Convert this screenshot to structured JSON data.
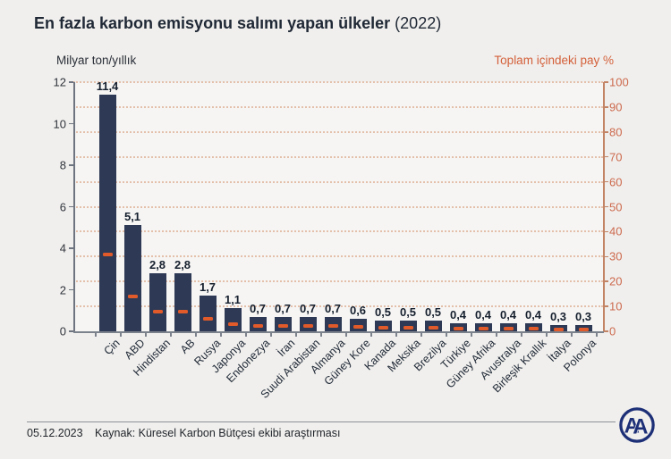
{
  "header": {
    "title": "En fazla karbon emisyonu salımı yapan ülkeler",
    "year": "(2022)"
  },
  "axes": {
    "left_title": "Milyar ton/yıllık",
    "right_title": "Toplam içindeki pay %"
  },
  "chart_data": {
    "type": "bar",
    "title": "En fazla karbon emisyonu salımı yapan ülkeler (2022)",
    "categories": [
      "Çin",
      "ABD",
      "Hindistan",
      "AB",
      "Rusya",
      "Japonya",
      "Endonezya",
      "İran",
      "Suudi Arabistan",
      "Almanya",
      "Güney Kore",
      "Kanada",
      "Meksika",
      "Brezilya",
      "Türkiye",
      "Güney Afrika",
      "Avustralya",
      "Birleşik Krallık",
      "İtalya",
      "Polonya"
    ],
    "series": [
      {
        "name": "Milyar ton/yıllık",
        "axis": "left",
        "style": "bar",
        "values": [
          11.4,
          5.1,
          2.8,
          2.8,
          1.7,
          1.1,
          0.7,
          0.7,
          0.7,
          0.7,
          0.6,
          0.5,
          0.5,
          0.5,
          0.4,
          0.4,
          0.4,
          0.4,
          0.3,
          0.3
        ],
        "labels": [
          "11,4",
          "5,1",
          "2,8",
          "2,8",
          "1,7",
          "1,1",
          "0,7",
          "0,7",
          "0,7",
          "0,7",
          "0,6",
          "0,5",
          "0,5",
          "0,5",
          "0,4",
          "0,4",
          "0,4",
          "0,4",
          "0,3",
          "0,3"
        ]
      },
      {
        "name": "Toplam içindeki pay %",
        "axis": "right",
        "style": "dash-marker",
        "values": [
          31,
          14,
          8,
          8,
          5,
          3,
          2,
          2,
          2,
          2,
          1.7,
          1.4,
          1.4,
          1.4,
          1.1,
          1.1,
          1.1,
          1.1,
          0.8,
          0.8
        ]
      }
    ],
    "left_axis": {
      "min": 0,
      "max": 12,
      "step": 2,
      "ticks": [
        "0",
        "2",
        "4",
        "6",
        "8",
        "10",
        "12"
      ]
    },
    "right_axis": {
      "min": 0,
      "max": 100,
      "step": 10,
      "ticks": [
        "0",
        "10",
        "20",
        "30",
        "40",
        "50",
        "60",
        "70",
        "80",
        "90",
        "100"
      ]
    },
    "grid": "horizontal dotted lines at every 10 of right axis",
    "legend": "none"
  },
  "colors": {
    "background": "#f0efed",
    "bar": "#2e3a55",
    "marker": "#e05a2a",
    "accent_orange": "#d4603a",
    "right_tick": "#cd6a4e",
    "logo_blue": "#1d2f77"
  },
  "footer": {
    "date": "05.12.2023",
    "source": "Kaynak: Küresel Karbon Bütçesi ekibi araştırması",
    "logo": "AA"
  }
}
